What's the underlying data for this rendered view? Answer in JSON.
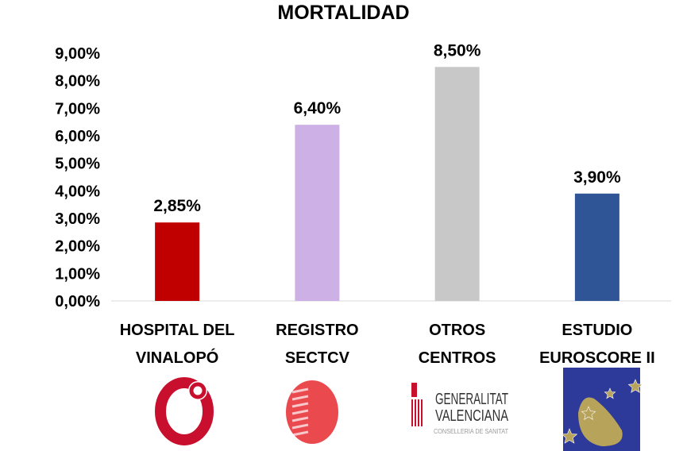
{
  "chart_data": {
    "type": "bar",
    "title": "MORTALIDAD",
    "categories": [
      [
        "HOSPITAL DEL",
        "VINALOPÓ"
      ],
      [
        "REGISTRO",
        "SECTCV"
      ],
      [
        "OTROS",
        "CENTROS"
      ],
      [
        "ESTUDIO",
        "EUROSCORE II"
      ]
    ],
    "values": [
      2.85,
      6.4,
      8.5,
      3.9
    ],
    "data_labels": [
      "2,85%",
      "6,40%",
      "8,50%",
      "3,90%"
    ],
    "colors": [
      "#c00000",
      "#cdb0e6",
      "#c8c8c8",
      "#2f5597"
    ],
    "ylim": [
      0,
      9
    ],
    "yticks": [
      "0,00%",
      "1,00%",
      "2,00%",
      "3,00%",
      "4,00%",
      "5,00%",
      "6,00%",
      "7,00%",
      "8,00%",
      "9,00%"
    ],
    "grid": false,
    "xlabel": "",
    "ylabel": ""
  },
  "logos": [
    {
      "name": "hospital-vinalopo-logo"
    },
    {
      "name": "registro-sectcv-logo"
    },
    {
      "name": "generalitat-valenciana-logo",
      "text": [
        "GENERALITAT",
        "VALENCIANA",
        "CONSELLERIA DE SANITAT"
      ]
    },
    {
      "name": "euroscore-logo"
    }
  ]
}
